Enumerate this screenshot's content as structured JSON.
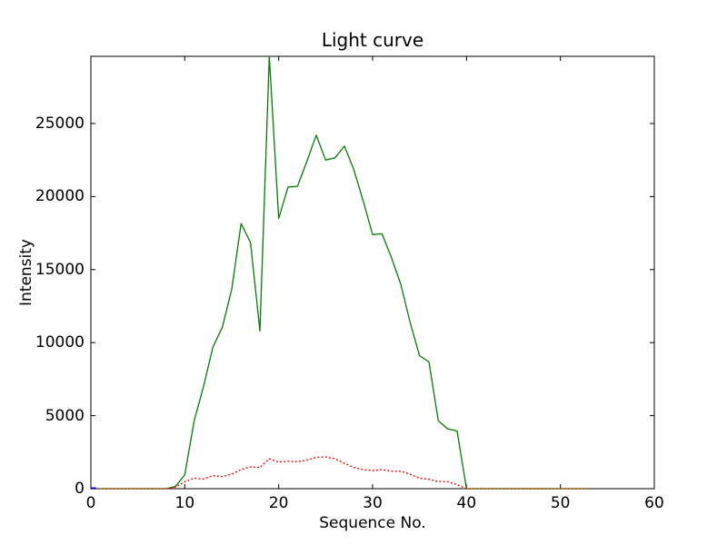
{
  "figure": {
    "title": "Light curve",
    "xlabel": "Sequence No.",
    "ylabel": "Intensity",
    "background_color": "#ffffff",
    "frame_color": "#000000"
  },
  "chart_data": {
    "type": "line",
    "title": "Light curve",
    "xlabel": "Sequence No.",
    "ylabel": "Intensity",
    "xlim": [
      0,
      60
    ],
    "ylim": [
      0,
      29600
    ],
    "xticks": [
      0,
      10,
      20,
      30,
      40,
      50,
      60
    ],
    "yticks": [
      0,
      5000,
      10000,
      15000,
      20000,
      25000
    ],
    "grid": false,
    "legend": null,
    "tick_direction": "in",
    "x": [
      0,
      1,
      2,
      3,
      4,
      5,
      6,
      7,
      8,
      9,
      10,
      11,
      12,
      13,
      14,
      15,
      16,
      17,
      18,
      19,
      20,
      21,
      22,
      23,
      24,
      25,
      26,
      27,
      28,
      29,
      30,
      31,
      32,
      33,
      34,
      35,
      36,
      37,
      38,
      39,
      40,
      41,
      42,
      43,
      44,
      45,
      46,
      47,
      48,
      49,
      50,
      51,
      52,
      53
    ],
    "series": [
      {
        "name": "green-solid-line",
        "color": "#008000",
        "style": "solid",
        "values": [
          0,
          0,
          0,
          0,
          0,
          0,
          0,
          0,
          0,
          150,
          950,
          4650,
          7000,
          9700,
          11050,
          13650,
          18150,
          16850,
          10800,
          29600,
          18500,
          20650,
          20700,
          22400,
          24200,
          22500,
          22650,
          23450,
          21850,
          19700,
          17400,
          17450,
          15840,
          14000,
          11380,
          9100,
          8690,
          4650,
          4100,
          3950,
          0,
          0,
          0,
          0,
          0,
          0,
          0,
          0,
          0,
          0,
          0,
          0,
          0,
          0
        ]
      },
      {
        "name": "red-dotted-line",
        "color": "#ff0000",
        "style": "dotted",
        "values": [
          0,
          0,
          0,
          0,
          0,
          0,
          0,
          0,
          0,
          100,
          480,
          720,
          660,
          890,
          830,
          990,
          1320,
          1490,
          1450,
          2050,
          1820,
          1880,
          1850,
          1950,
          2150,
          2170,
          2050,
          1740,
          1450,
          1300,
          1240,
          1300,
          1200,
          1200,
          990,
          720,
          640,
          495,
          475,
          270,
          0,
          0,
          0,
          0,
          0,
          0,
          0,
          0,
          0,
          0,
          0,
          0,
          0,
          0
        ]
      },
      {
        "name": "blue-short-segment",
        "color": "#0000ff",
        "style": "solid",
        "x": [
          0.05,
          0.55
        ],
        "values": [
          30,
          30
        ]
      }
    ]
  }
}
